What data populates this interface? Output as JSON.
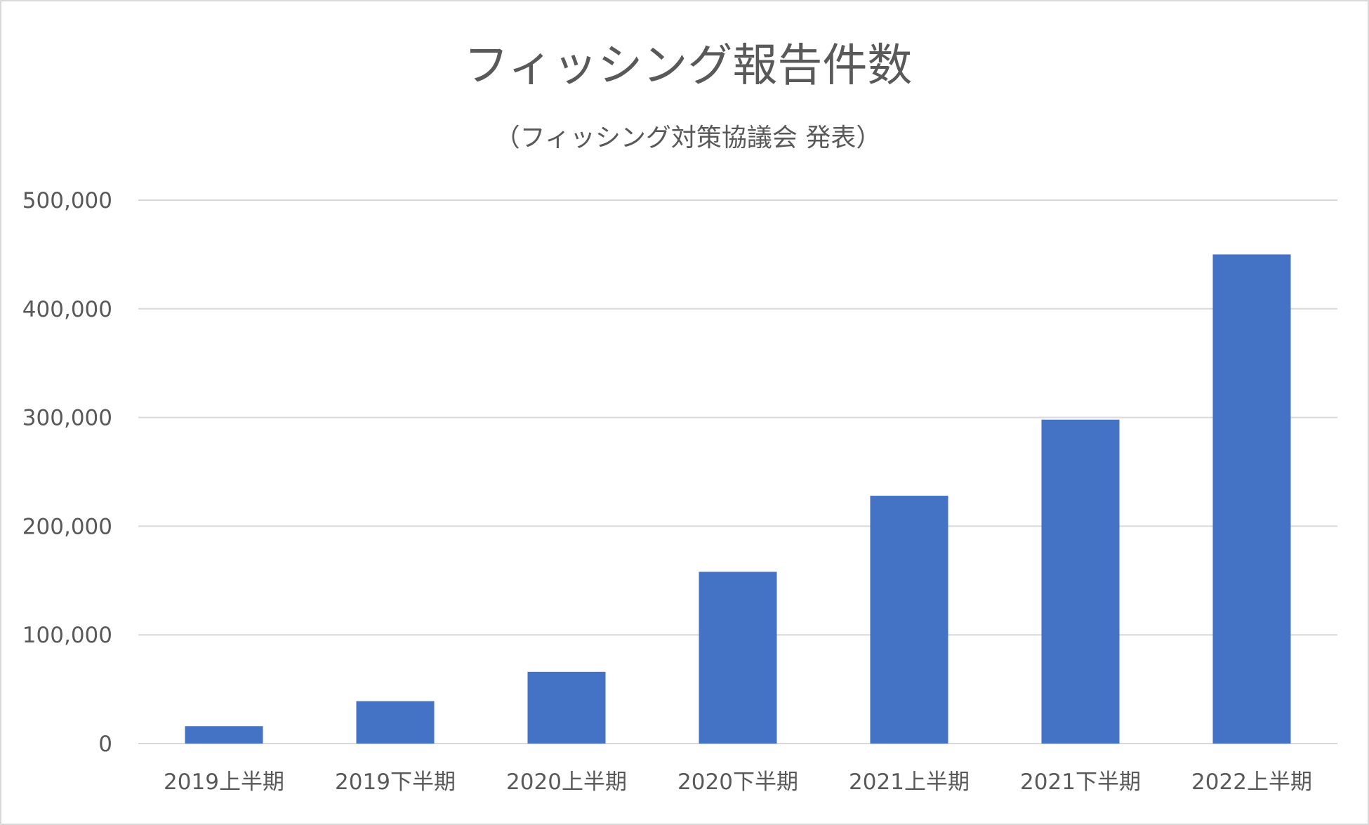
{
  "chart_data": {
    "type": "bar",
    "title": "フィッシング報告件数",
    "subtitle": "（フィッシング対策協議会 発表）",
    "categories": [
      "2019上半期",
      "2019下半期",
      "2020上半期",
      "2020下半期",
      "2021上半期",
      "2021下半期",
      "2022上半期"
    ],
    "values": [
      16000,
      39000,
      66000,
      158000,
      228000,
      298000,
      450000
    ],
    "ylim": [
      0,
      500000
    ],
    "yticks": [
      0,
      100000,
      200000,
      300000,
      400000,
      500000
    ],
    "ytick_labels": [
      "0",
      "100,000",
      "200,000",
      "300,000",
      "400,000",
      "500,000"
    ],
    "grid": true,
    "legend": false,
    "bar_color": "#4472C4"
  }
}
